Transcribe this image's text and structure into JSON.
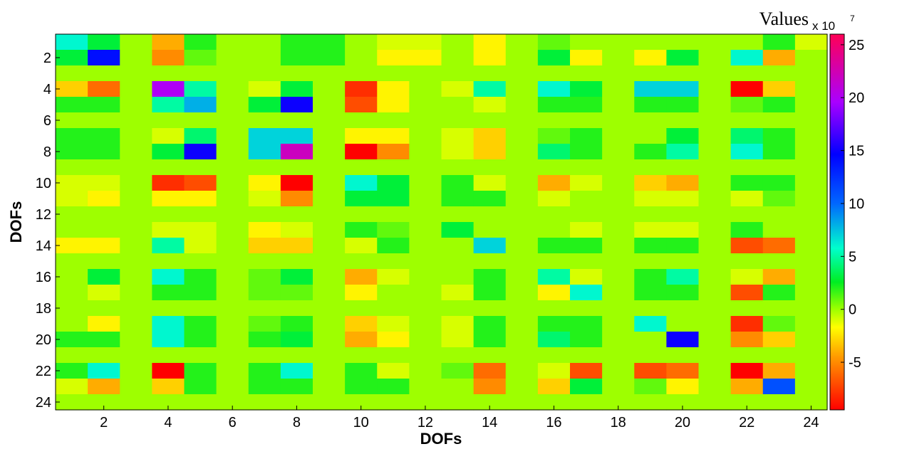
{
  "chart_data": {
    "type": "heatmap",
    "xlabel": "DOFs",
    "ylabel": "DOFs",
    "colorbar_title": "Values",
    "colorbar_multiplier": "x 10",
    "colorbar_exponent": "7",
    "x_ticks": [
      "2",
      "4",
      "6",
      "8",
      "10",
      "12",
      "14",
      "16",
      "18",
      "20",
      "22",
      "24"
    ],
    "y_ticks": [
      "2",
      "4",
      "6",
      "8",
      "10",
      "12",
      "14",
      "16",
      "18",
      "20",
      "22",
      "24"
    ],
    "colorbar_ticks": [
      "25",
      "20",
      "15",
      "10",
      "5",
      "0",
      "-5"
    ],
    "colorbar_range": [
      -9.5,
      26
    ],
    "rows": 24,
    "cols": 24,
    "matrix": [
      [
        6,
        3,
        0,
        -4,
        2,
        0,
        0,
        2,
        2,
        0,
        -1,
        -1,
        0,
        -2,
        0,
        1,
        0,
        0,
        0,
        0,
        0,
        0,
        2,
        -1
      ],
      [
        3,
        14,
        0,
        -5,
        1,
        0,
        0,
        2,
        2,
        0,
        -2,
        -2,
        0,
        -2,
        0,
        3,
        -2,
        0,
        -2,
        3,
        0,
        6,
        -4,
        0
      ],
      [
        0,
        0,
        0,
        0,
        0,
        0,
        0,
        0,
        0,
        0,
        0,
        0,
        0,
        0,
        0,
        0,
        0,
        0,
        0,
        0,
        0,
        0,
        0,
        0
      ],
      [
        -3,
        -6,
        0,
        20,
        5,
        0,
        -1,
        3,
        0,
        -8,
        -2,
        0,
        -1,
        5,
        0,
        6,
        3,
        0,
        7,
        7,
        0,
        -10,
        -3,
        0
      ],
      [
        2,
        2,
        0,
        5,
        8,
        0,
        3,
        15,
        0,
        -7,
        -2,
        0,
        0,
        -1,
        0,
        2,
        2,
        0,
        2,
        2,
        0,
        1,
        2,
        0
      ],
      [
        0,
        0,
        0,
        0,
        0,
        0,
        0,
        0,
        0,
        0,
        0,
        0,
        0,
        0,
        0,
        0,
        0,
        0,
        0,
        0,
        0,
        0,
        0,
        0
      ],
      [
        2,
        2,
        0,
        -1,
        4,
        0,
        7,
        7,
        0,
        -2,
        -2,
        0,
        -1,
        -3,
        0,
        1,
        2,
        0,
        0,
        3,
        0,
        4,
        2,
        0
      ],
      [
        2,
        2,
        0,
        3,
        15,
        0,
        7,
        22,
        0,
        -10,
        -5,
        0,
        -1,
        -3,
        0,
        4,
        2,
        0,
        2,
        5,
        0,
        6,
        2,
        0
      ],
      [
        0,
        0,
        0,
        0,
        0,
        0,
        0,
        0,
        0,
        0,
        0,
        0,
        0,
        0,
        0,
        0,
        0,
        0,
        0,
        0,
        0,
        0,
        0,
        0
      ],
      [
        -1,
        -1,
        0,
        -8,
        -7,
        0,
        -2,
        -10,
        0,
        6,
        3,
        0,
        2,
        -1,
        0,
        -4,
        -1,
        0,
        -3,
        -4,
        0,
        2,
        2,
        0
      ],
      [
        -1,
        -2,
        0,
        -2,
        -2,
        0,
        -1,
        -5,
        0,
        3,
        3,
        0,
        2,
        2,
        0,
        -1,
        0,
        0,
        -1,
        -1,
        0,
        -1,
        1,
        0
      ],
      [
        0,
        0,
        0,
        0,
        0,
        0,
        0,
        0,
        0,
        0,
        0,
        0,
        0,
        0,
        0,
        0,
        0,
        0,
        0,
        0,
        0,
        0,
        0,
        0
      ],
      [
        0,
        0,
        0,
        -1,
        -1,
        0,
        -2,
        -1,
        0,
        2,
        1,
        0,
        3,
        0,
        0,
        0,
        -1,
        0,
        -1,
        -1,
        0,
        2,
        0,
        0
      ],
      [
        -2,
        -2,
        0,
        5,
        -1,
        0,
        -3,
        -3,
        0,
        -1,
        2,
        0,
        0,
        7,
        0,
        2,
        2,
        0,
        2,
        2,
        0,
        -7,
        -6,
        0
      ],
      [
        0,
        0,
        0,
        0,
        0,
        0,
        0,
        0,
        0,
        0,
        0,
        0,
        0,
        0,
        0,
        0,
        0,
        0,
        0,
        0,
        0,
        0,
        0,
        0
      ],
      [
        0,
        3,
        0,
        6,
        2,
        0,
        1,
        3,
        0,
        -4,
        -1,
        0,
        0,
        2,
        0,
        5,
        -1,
        0,
        2,
        5,
        0,
        -1,
        -4,
        0
      ],
      [
        0,
        -1,
        0,
        2,
        2,
        0,
        1,
        1,
        0,
        -2,
        0,
        0,
        -1,
        2,
        0,
        -2,
        6,
        0,
        2,
        2,
        0,
        -7,
        2,
        0
      ],
      [
        0,
        0,
        0,
        0,
        0,
        0,
        0,
        0,
        0,
        0,
        0,
        0,
        0,
        0,
        0,
        0,
        0,
        0,
        0,
        0,
        0,
        0,
        0,
        0
      ],
      [
        0,
        -2,
        0,
        6,
        2,
        0,
        1,
        2,
        0,
        -3,
        -1,
        0,
        -1,
        2,
        0,
        2,
        2,
        0,
        6,
        0,
        0,
        -8,
        1,
        0
      ],
      [
        2,
        2,
        0,
        6,
        2,
        0,
        2,
        3,
        0,
        -4,
        -2,
        0,
        -1,
        2,
        0,
        4,
        2,
        0,
        0,
        15,
        0,
        -5,
        -3,
        0
      ],
      [
        0,
        0,
        0,
        0,
        0,
        0,
        0,
        0,
        0,
        0,
        0,
        0,
        0,
        0,
        0,
        0,
        0,
        0,
        0,
        0,
        0,
        0,
        0,
        0
      ],
      [
        2,
        6,
        0,
        -10,
        2,
        0,
        2,
        6,
        0,
        2,
        -1,
        0,
        1,
        -6,
        0,
        -1,
        -7,
        0,
        -7,
        -6,
        0,
        -10,
        -4,
        0
      ],
      [
        -1,
        -4,
        0,
        -3,
        2,
        0,
        2,
        2,
        0,
        2,
        2,
        0,
        0,
        -5,
        0,
        -3,
        3,
        0,
        1,
        -2,
        0,
        -4,
        11,
        0
      ],
      [
        0,
        0,
        0,
        0,
        0,
        0,
        0,
        0,
        0,
        0,
        0,
        0,
        0,
        0,
        0,
        0,
        0,
        0,
        0,
        0,
        0,
        0,
        0,
        0
      ]
    ]
  }
}
